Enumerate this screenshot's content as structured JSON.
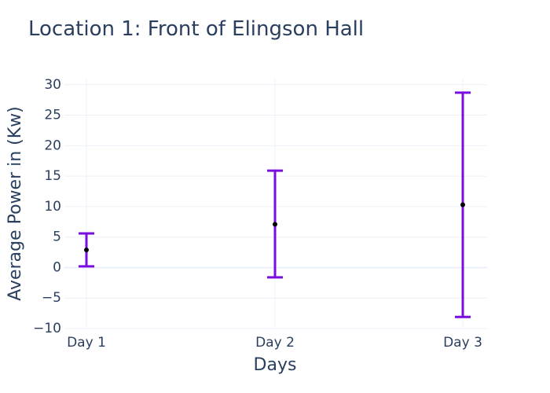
{
  "chart_data": {
    "type": "scatter",
    "title": "Location 1: Front of Elingson Hall",
    "xlabel": "Days",
    "ylabel": "Average Power in (Kw)",
    "categories": [
      "Day 1",
      "Day 2",
      "Day 3"
    ],
    "series": [
      {
        "values": [
          2.9,
          7.1,
          10.3
        ],
        "error_low": [
          0.2,
          -1.6,
          -8.1
        ],
        "error_high": [
          5.6,
          15.9,
          28.7
        ]
      }
    ],
    "ylim": [
      -10,
      31
    ],
    "yticks": [
      30,
      25,
      20,
      15,
      10,
      5,
      0,
      -5,
      -10
    ],
    "ytick_labels": [
      "30",
      "25",
      "20",
      "15",
      "10",
      "5",
      "0",
      "−5",
      "−10"
    ],
    "grid": true,
    "colors": {
      "marker": "#000000",
      "error_bar": "#7a0ee0",
      "grid": "#ebf0f8",
      "zero_line": "#ebf0f8",
      "text": "#2a3f5f"
    }
  }
}
